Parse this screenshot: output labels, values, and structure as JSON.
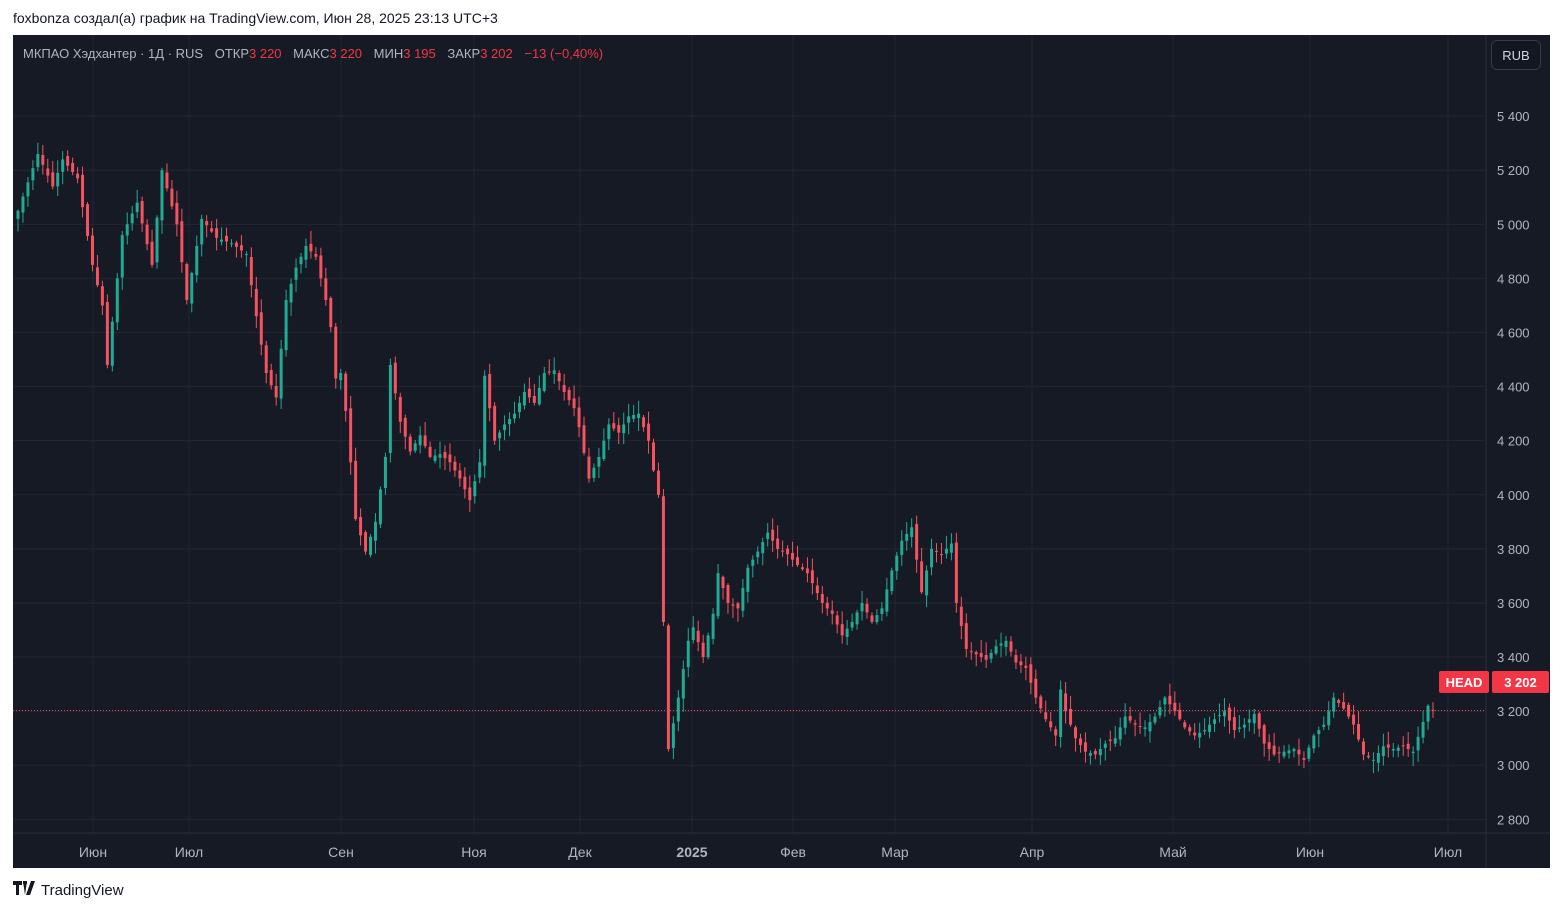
{
  "header": {
    "attribution": "foxbonza создал(а) график на TradingView.com, Июн 28, 2025 23:13 UTC+3"
  },
  "legend": {
    "symbol": "МКПАО Хэдхантер · 1Д · RUS",
    "open_label": "ОТКР",
    "open_value": "3 220",
    "high_label": "МАКС",
    "high_value": "3 220",
    "low_label": "МИН",
    "low_value": "3 195",
    "close_label": "ЗАКР",
    "close_value": "3 202",
    "change": "−13 (−0,40%)"
  },
  "currency_button": "RUB",
  "last_price": {
    "ticker": "HEAD",
    "value": "3 202"
  },
  "footer": {
    "brand": "TradingView",
    "logo_icon": "tradingview-logo-icon"
  },
  "colors": {
    "up": "#22ab94",
    "down": "#f7525f",
    "background": "#161a25",
    "grid": "#232632",
    "text": "#b2b5be"
  },
  "chart_data": {
    "type": "candlestick",
    "interval": "1Д",
    "currency": "RUB",
    "x_axis_labels": [
      "Июн",
      "Июл",
      "Сен",
      "Ноя",
      "Дек",
      "2025",
      "Фев",
      "Мар",
      "Апр",
      "Май",
      "Июн",
      "Июл"
    ],
    "y_axis_ticks": [
      2800,
      3000,
      3200,
      3400,
      3600,
      3800,
      4000,
      4200,
      4400,
      4600,
      4800,
      5000,
      5200,
      5400
    ],
    "y_axis_labels": [
      "2 800",
      "3 000",
      "3 200",
      "3 400",
      "3 600",
      "3 800",
      "4 000",
      "4 200",
      "4 400",
      "4 600",
      "4 800",
      "5 000",
      "5 200",
      "5 400"
    ],
    "ylim": [
      2620,
      5700
    ],
    "price_line": 3202,
    "close_path": [
      [
        0,
        5050
      ],
      [
        4,
        5260
      ],
      [
        7,
        5140
      ],
      [
        9,
        5240
      ],
      [
        12,
        5170
      ],
      [
        15,
        4850
      ],
      [
        17,
        4700
      ],
      [
        18,
        4480
      ],
      [
        21,
        4960
      ],
      [
        24,
        5080
      ],
      [
        27,
        4850
      ],
      [
        29,
        5200
      ],
      [
        32,
        5000
      ],
      [
        34,
        4720
      ],
      [
        37,
        5020
      ],
      [
        40,
        4950
      ],
      [
        43,
        4930
      ],
      [
        46,
        4890
      ],
      [
        48,
        4660
      ],
      [
        50,
        4450
      ],
      [
        52,
        4360
      ],
      [
        54,
        4720
      ],
      [
        56,
        4840
      ],
      [
        58,
        4920
      ],
      [
        60,
        4880
      ],
      [
        62,
        4720
      ],
      [
        63,
        4620
      ],
      [
        64,
        4430
      ],
      [
        65,
        4450
      ],
      [
        66,
        4310
      ],
      [
        67,
        4120
      ],
      [
        68,
        3910
      ],
      [
        70,
        3790
      ],
      [
        72,
        3900
      ],
      [
        74,
        4140
      ],
      [
        75,
        4480
      ],
      [
        77,
        4270
      ],
      [
        79,
        4160
      ],
      [
        81,
        4220
      ],
      [
        83,
        4140
      ],
      [
        85,
        4150
      ],
      [
        87,
        4120
      ],
      [
        89,
        4060
      ],
      [
        91,
        3980
      ],
      [
        93,
        4120
      ],
      [
        94,
        4440
      ],
      [
        96,
        4200
      ],
      [
        98,
        4260
      ],
      [
        100,
        4300
      ],
      [
        102,
        4380
      ],
      [
        104,
        4340
      ],
      [
        106,
        4450
      ],
      [
        108,
        4460
      ],
      [
        110,
        4380
      ],
      [
        112,
        4320
      ],
      [
        113,
        4250
      ],
      [
        115,
        4060
      ],
      [
        117,
        4140
      ],
      [
        119,
        4260
      ],
      [
        121,
        4230
      ],
      [
        123,
        4290
      ],
      [
        125,
        4300
      ],
      [
        127,
        4200
      ],
      [
        128,
        4090
      ],
      [
        129,
        4000
      ],
      [
        131,
        3060
      ],
      [
        133,
        3250
      ],
      [
        135,
        3460
      ],
      [
        136,
        3510
      ],
      [
        138,
        3400
      ],
      [
        140,
        3560
      ],
      [
        141,
        3710
      ],
      [
        143,
        3600
      ],
      [
        145,
        3580
      ],
      [
        147,
        3730
      ],
      [
        149,
        3790
      ],
      [
        151,
        3860
      ],
      [
        153,
        3800
      ],
      [
        155,
        3780
      ],
      [
        157,
        3740
      ],
      [
        159,
        3710
      ],
      [
        162,
        3600
      ],
      [
        164,
        3560
      ],
      [
        166,
        3480
      ],
      [
        168,
        3530
      ],
      [
        170,
        3600
      ],
      [
        172,
        3530
      ],
      [
        174,
        3580
      ],
      [
        176,
        3720
      ],
      [
        178,
        3830
      ],
      [
        180,
        3880
      ],
      [
        182,
        3640
      ],
      [
        184,
        3800
      ],
      [
        186,
        3780
      ],
      [
        188,
        3820
      ],
      [
        189,
        3600
      ],
      [
        191,
        3430
      ],
      [
        193,
        3410
      ],
      [
        195,
        3390
      ],
      [
        197,
        3440
      ],
      [
        199,
        3460
      ],
      [
        201,
        3380
      ],
      [
        203,
        3360
      ],
      [
        205,
        3250
      ],
      [
        207,
        3170
      ],
      [
        209,
        3110
      ],
      [
        210,
        3280
      ],
      [
        211,
        3200
      ],
      [
        213,
        3100
      ],
      [
        215,
        3050
      ],
      [
        217,
        3040
      ],
      [
        219,
        3080
      ],
      [
        221,
        3100
      ],
      [
        223,
        3180
      ],
      [
        225,
        3150
      ],
      [
        227,
        3140
      ],
      [
        229,
        3180
      ],
      [
        231,
        3250
      ],
      [
        233,
        3200
      ],
      [
        235,
        3140
      ],
      [
        237,
        3110
      ],
      [
        239,
        3130
      ],
      [
        241,
        3170
      ],
      [
        243,
        3200
      ],
      [
        245,
        3130
      ],
      [
        247,
        3150
      ],
      [
        249,
        3190
      ],
      [
        251,
        3080
      ],
      [
        253,
        3040
      ],
      [
        255,
        3050
      ],
      [
        257,
        3060
      ],
      [
        259,
        3020
      ],
      [
        261,
        3110
      ],
      [
        263,
        3150
      ],
      [
        265,
        3250
      ],
      [
        267,
        3210
      ],
      [
        269,
        3150
      ],
      [
        271,
        3040
      ],
      [
        273,
        3020
      ],
      [
        275,
        3070
      ],
      [
        277,
        3060
      ],
      [
        279,
        3070
      ],
      [
        281,
        3050
      ],
      [
        283,
        3160
      ],
      [
        284,
        3220
      ],
      [
        285,
        3202
      ]
    ]
  }
}
